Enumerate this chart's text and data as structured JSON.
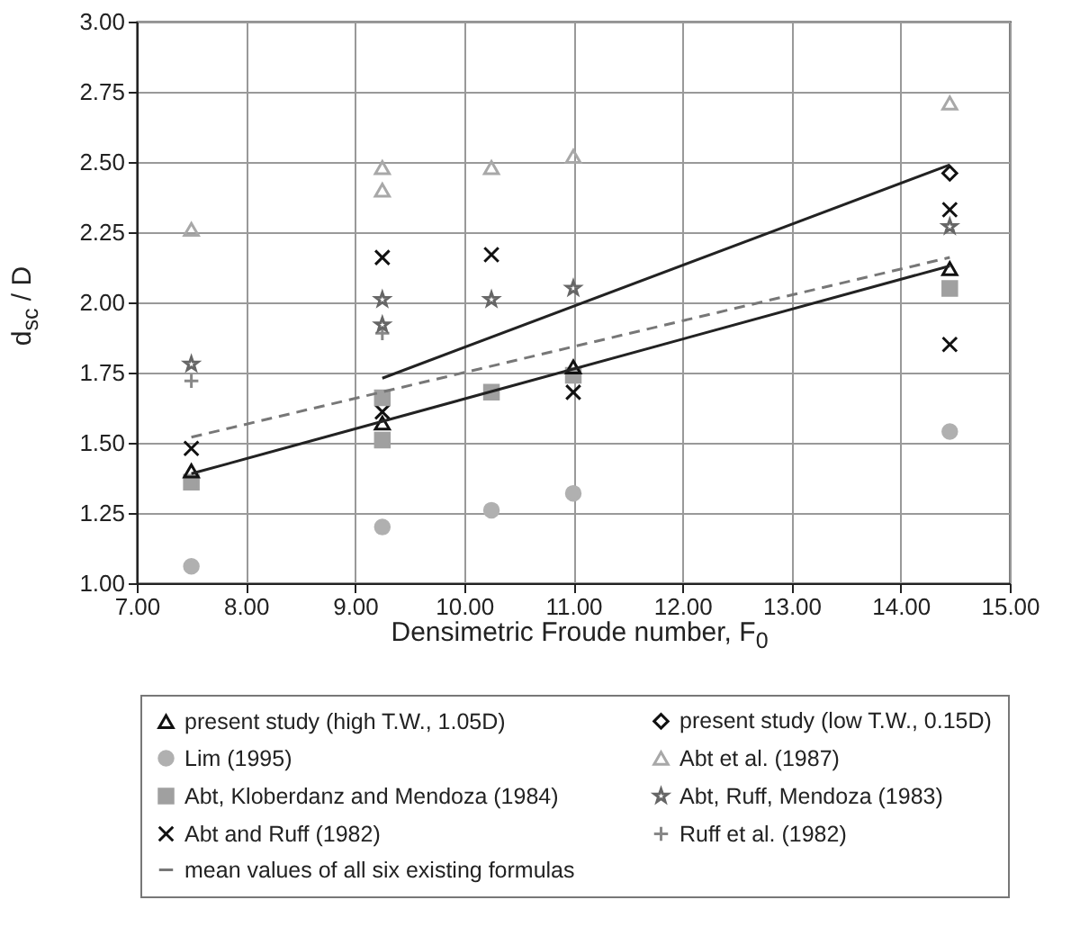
{
  "chart_data": {
    "type": "scatter",
    "xlabel": "Densimetric Froude number, F$_{0}$",
    "ylabel": "d$_{sc}$ / D",
    "xlim": [
      7,
      15
    ],
    "ylim": [
      1,
      3
    ],
    "xticks": [
      {
        "value": 7,
        "label": "7.00"
      },
      {
        "value": 8,
        "label": "8.00"
      },
      {
        "value": 9,
        "label": "9.00"
      },
      {
        "value": 10,
        "label": "10.00"
      },
      {
        "value": 11,
        "label": "11.00"
      },
      {
        "value": 12,
        "label": "12.00"
      },
      {
        "value": 13,
        "label": "13.00"
      },
      {
        "value": 14,
        "label": "14.00"
      },
      {
        "value": 15,
        "label": "15.00"
      }
    ],
    "yticks": [
      {
        "value": 1,
        "label": "1.00"
      },
      {
        "value": 1.25,
        "label": "1.25"
      },
      {
        "value": 1.5,
        "label": "1.50"
      },
      {
        "value": 1.75,
        "label": "1.75"
      },
      {
        "value": 2,
        "label": "2.00"
      },
      {
        "value": 2.25,
        "label": "2.25"
      },
      {
        "value": 2.5,
        "label": "2.50"
      },
      {
        "value": 2.75,
        "label": "2.75"
      },
      {
        "value": 3,
        "label": "3.00"
      }
    ],
    "grid": true,
    "legend": "bottom",
    "series": [
      {
        "name": "present study (high T.W., 1.05D)",
        "color": "#111111",
        "marker": "triangle",
        "x": [
          7.5,
          9.25,
          11.0,
          14.45
        ],
        "values": [
          1.4,
          1.57,
          1.77,
          2.12
        ]
      },
      {
        "name": "present study (low T.W., 0.15D)",
        "color": "#111111",
        "marker": "diamond",
        "x": [
          14.45
        ],
        "values": [
          2.46
        ]
      },
      {
        "name": "Lim (1995)",
        "color": "#b0b0b0",
        "marker": "circle",
        "x": [
          7.5,
          9.25,
          10.25,
          11.0,
          14.45
        ],
        "values": [
          1.06,
          1.2,
          1.26,
          1.32,
          1.54
        ]
      },
      {
        "name": "Abt et al. (1987)",
        "color": "#a8a8a8",
        "marker": "triangle",
        "x": [
          7.5,
          9.25,
          9.25,
          10.25,
          11.0,
          14.45
        ],
        "values": [
          2.26,
          2.4,
          2.48,
          2.48,
          2.52,
          2.71
        ]
      },
      {
        "name": "Abt, Kloberdanz and Mendoza (1984)",
        "color": "#a0a0a0",
        "marker": "square",
        "x": [
          7.5,
          9.25,
          9.25,
          10.25,
          11.0,
          14.45
        ],
        "values": [
          1.36,
          1.51,
          1.66,
          1.68,
          1.74,
          2.05
        ]
      },
      {
        "name": "Abt, Ruff, Mendoza (1983)",
        "color": "#666666",
        "marker": "star",
        "x": [
          7.5,
          9.25,
          9.25,
          10.25,
          11.0,
          14.45
        ],
        "values": [
          1.78,
          1.92,
          2.01,
          2.01,
          2.05,
          2.27
        ]
      },
      {
        "name": "Abt and Ruff (1982)",
        "color": "#111111",
        "marker": "cross",
        "x": [
          7.5,
          9.25,
          9.25,
          10.25,
          11.0,
          14.45,
          14.45
        ],
        "values": [
          1.48,
          1.61,
          2.16,
          2.17,
          1.68,
          1.85,
          2.33
        ]
      },
      {
        "name": "Ruff et al. (1982)",
        "color": "#888888",
        "marker": "plus",
        "x": [
          7.5,
          9.25
        ],
        "values": [
          1.72,
          1.89
        ]
      },
      {
        "name": "mean values of all six existing formulas",
        "type": "line",
        "color": "#777777",
        "line_style": "dashed",
        "x": [
          7.5,
          14.45
        ],
        "values": [
          1.52,
          2.16
        ]
      },
      {
        "type": "line",
        "color": "#222222",
        "line_style": "solid",
        "x": [
          7.5,
          14.45
        ],
        "values": [
          1.39,
          2.13
        ]
      },
      {
        "type": "line",
        "color": "#222222",
        "line_style": "solid",
        "x": [
          9.25,
          14.45
        ],
        "values": [
          1.73,
          2.49
        ]
      }
    ]
  }
}
